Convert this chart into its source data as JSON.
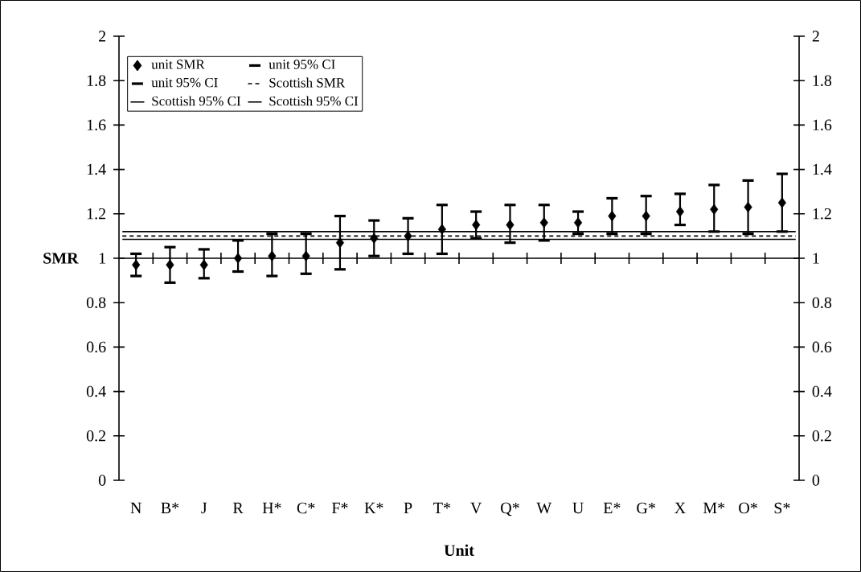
{
  "chart_data": {
    "type": "scatter",
    "xlabel": "Unit",
    "ylabel": "SMR",
    "categories": [
      "N",
      "B*",
      "J",
      "R",
      "H*",
      "C*",
      "F*",
      "K*",
      "P",
      "T*",
      "V",
      "Q*",
      "W",
      "U",
      "E*",
      "G*",
      "X",
      "M*",
      "O*",
      "S*"
    ],
    "series": [
      {
        "name": "unit SMR",
        "type": "scatter",
        "marker": "diamond",
        "color": "#000000",
        "values": [
          0.97,
          0.97,
          0.97,
          1.0,
          1.01,
          1.01,
          1.07,
          1.09,
          1.1,
          1.13,
          1.15,
          1.15,
          1.16,
          1.16,
          1.19,
          1.19,
          1.21,
          1.22,
          1.23,
          1.25
        ],
        "errors": [
          [
            0.92,
            1.02
          ],
          [
            0.89,
            1.05
          ],
          [
            0.91,
            1.04
          ],
          [
            0.94,
            1.08
          ],
          [
            0.92,
            1.11
          ],
          [
            0.93,
            1.11
          ],
          [
            0.95,
            1.19
          ],
          [
            1.01,
            1.17
          ],
          [
            1.02,
            1.18
          ],
          [
            1.02,
            1.24
          ],
          [
            1.09,
            1.21
          ],
          [
            1.07,
            1.24
          ],
          [
            1.08,
            1.24
          ],
          [
            1.11,
            1.21
          ],
          [
            1.11,
            1.27
          ],
          [
            1.11,
            1.28
          ],
          [
            1.15,
            1.29
          ],
          [
            1.12,
            1.33
          ],
          [
            1.11,
            1.35
          ],
          [
            1.12,
            1.38
          ]
        ]
      }
    ],
    "annotations": [
      "unit 95% CI",
      "unit 95% CI"
    ],
    "ref_lines": [
      {
        "axis": "y",
        "value": 1.1,
        "label": "Scottish SMR",
        "color": "#000000",
        "line_style": "dotted"
      },
      {
        "axis": "y",
        "value": 1.12,
        "label": "Scottish 95% CI",
        "color": "#000000",
        "line_style": "solid"
      },
      {
        "axis": "y",
        "value": 1.085,
        "label": "Scottish 95% CI",
        "color": "#000000",
        "line_style": "solid"
      },
      {
        "axis": "y",
        "value": 1,
        "color": "#000000",
        "line_style": "solid"
      }
    ],
    "ylim": [
      0,
      2
    ],
    "yticks": [
      0,
      0.2,
      0.4,
      0.6,
      0.8,
      1,
      1.2,
      1.4,
      1.6,
      1.8,
      2
    ],
    "y2lim": [
      0,
      2
    ],
    "y2ticks": [
      0,
      0.2,
      0.4,
      0.6,
      0.8,
      1,
      1.2,
      1.4,
      1.6,
      1.8,
      2
    ],
    "legend": "top left"
  }
}
